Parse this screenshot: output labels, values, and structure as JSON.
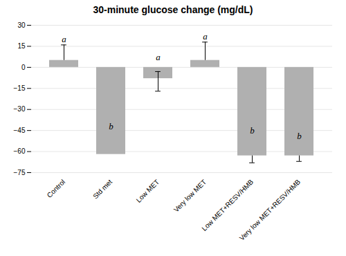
{
  "chart_data": {
    "type": "bar",
    "title": "30-minute glucose change (mg/dL)",
    "categories": [
      "Control",
      "Std met",
      "Low MET",
      "Very low MET",
      "Low MET+RESV/HMB",
      "Very low MET+RESV/HMB"
    ],
    "values": [
      5,
      -62,
      -8,
      5,
      -63,
      -63
    ],
    "errors_upper": [
      11,
      0,
      5,
      13,
      0,
      0
    ],
    "errors_lower": [
      0,
      0,
      9,
      0,
      5,
      4
    ],
    "annotations": [
      {
        "text": "a",
        "x": "Control",
        "y": 17
      },
      {
        "text": "b",
        "x": "Std met",
        "y": -45
      },
      {
        "text": "a",
        "x": "Low MET",
        "y": 4
      },
      {
        "text": "a",
        "x": "Very low MET",
        "y": 19
      },
      {
        "text": "b",
        "x": "Low MET+RESV/HMB",
        "y": -48
      },
      {
        "text": "b",
        "x": "Very low MET+RESV/HMB",
        "y": -52
      }
    ],
    "color": "#b0b0b0",
    "ylim": [
      -75,
      30
    ],
    "yticks": [
      {
        "value": -75,
        "label": "−75"
      },
      {
        "value": -60,
        "label": "−60"
      },
      {
        "value": -45,
        "label": "−45"
      },
      {
        "value": -30,
        "label": "−30"
      },
      {
        "value": -15,
        "label": "−15"
      },
      0,
      15,
      30
    ],
    "grid": true
  }
}
